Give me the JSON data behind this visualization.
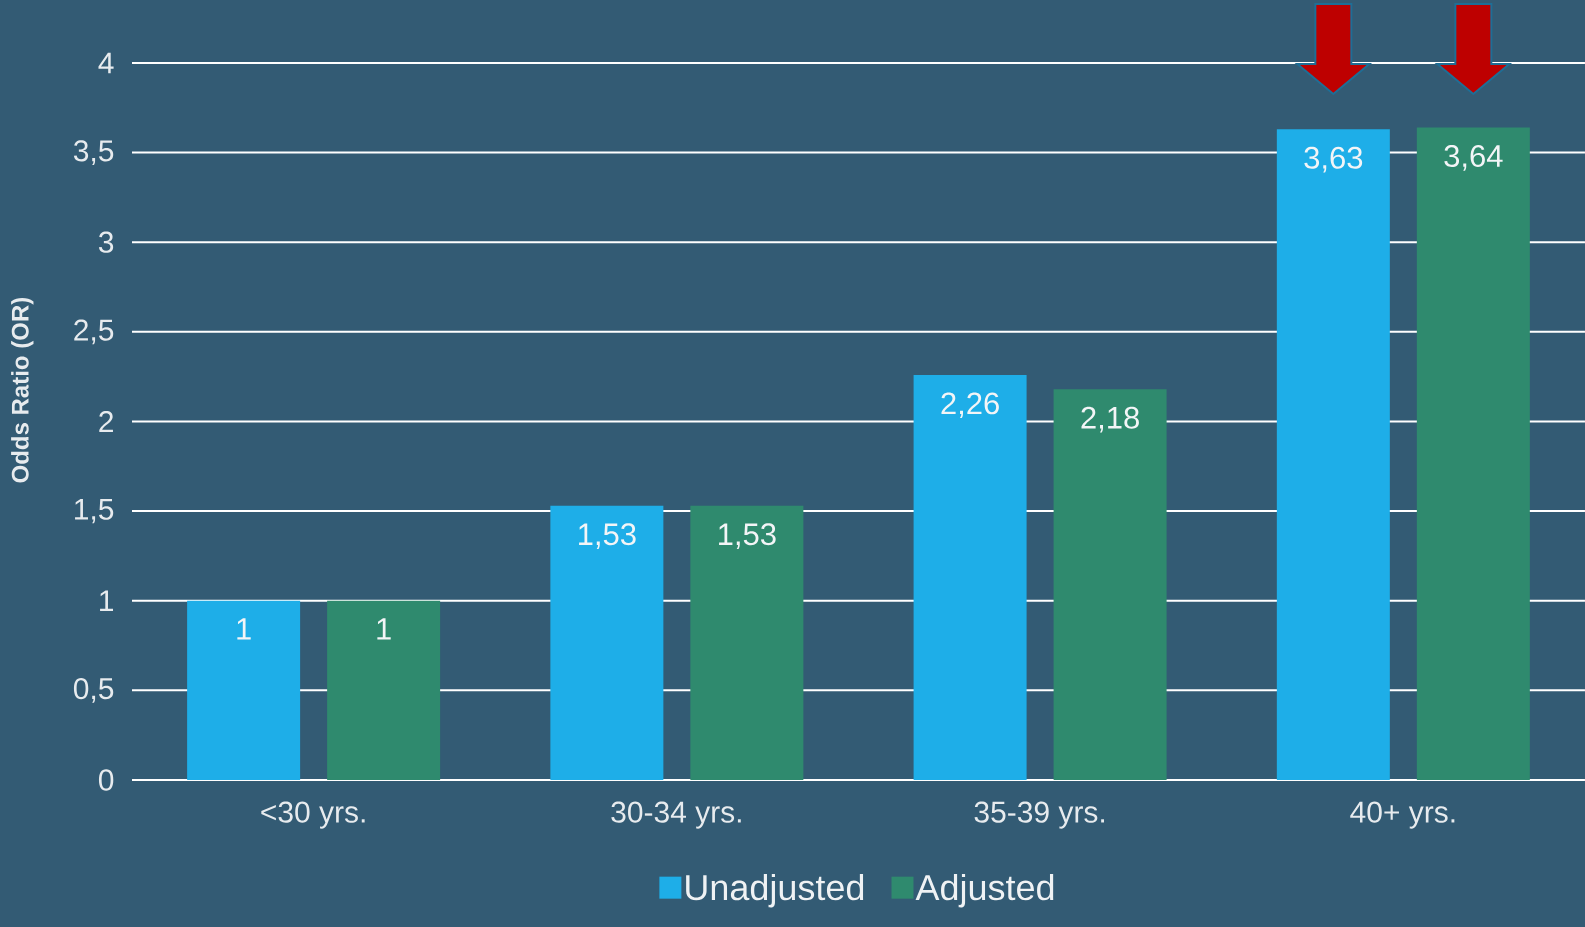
{
  "chart_data": {
    "type": "bar",
    "ylabel": "Odds Ratio (OR)",
    "categories": [
      "<30 yrs.",
      "30-34 yrs.",
      "35-39 yrs.",
      "40+  yrs."
    ],
    "series": [
      {
        "name": "Unadjusted",
        "color": "#1eaee8",
        "values": [
          1,
          1.53,
          2.26,
          3.63
        ],
        "value_labels": [
          "1",
          "1,53",
          "2,26",
          "3,63"
        ]
      },
      {
        "name": "Adjusted",
        "color": "#2f8a6e",
        "values": [
          1,
          1.53,
          2.18,
          3.64
        ],
        "value_labels": [
          "1",
          "1,53",
          "2,18",
          "3,64"
        ]
      }
    ],
    "ylim": [
      0,
      4.35
    ],
    "yticks": [
      0,
      {
        "value": 0.5,
        "label": "0,5"
      },
      1,
      {
        "value": 1.5,
        "label": "1,5"
      },
      2,
      {
        "value": 2.5,
        "label": "2,5"
      },
      3,
      {
        "value": 3.5,
        "label": "3,5"
      },
      4
    ],
    "grid": "y",
    "legend": "bottom"
  }
}
